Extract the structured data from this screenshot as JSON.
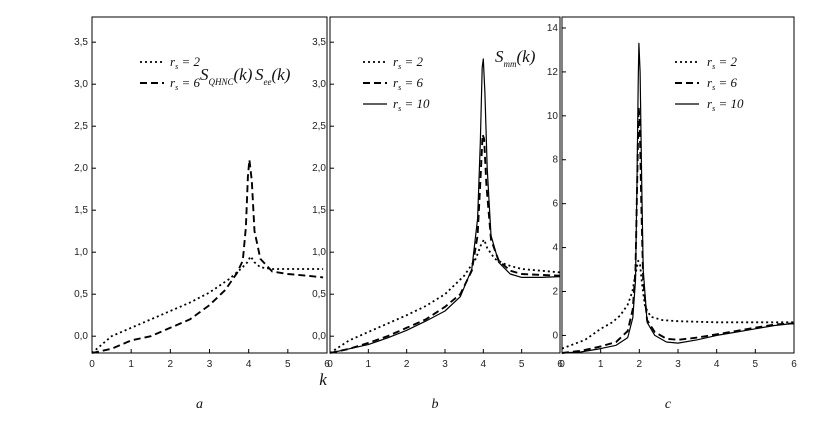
{
  "figure": {
    "shared_xlabel": "k",
    "legend_var": "r",
    "legend_sub": "s",
    "legend_eq": "= "
  },
  "chart_data": [
    {
      "type": "line",
      "panel_label": "a",
      "ylabel": "S",
      "ylabel_sub": "QHNC",
      "ylabel_arg": "(k)",
      "xlim": [
        0,
        6
      ],
      "ylim": [
        -0.2,
        3.8
      ],
      "x_ticks": [
        "0",
        "1",
        "2",
        "3",
        "4",
        "5",
        "6"
      ],
      "y_ticks": [
        "0,0",
        "0,5",
        "1,0",
        "1,5",
        "2,0",
        "2,5",
        "3,0",
        "3,5"
      ],
      "y_tick_values": [
        0,
        0.5,
        1.0,
        1.5,
        2.0,
        2.5,
        3.0,
        3.5
      ],
      "series": [
        {
          "name": "2",
          "style": "dotted",
          "points": [
            [
              0,
              -0.2
            ],
            [
              0.5,
              0.0
            ],
            [
              1,
              0.1
            ],
            [
              1.5,
              0.2
            ],
            [
              2,
              0.3
            ],
            [
              2.5,
              0.4
            ],
            [
              3,
              0.52
            ],
            [
              3.5,
              0.68
            ],
            [
              3.8,
              0.8
            ],
            [
              3.95,
              0.87
            ],
            [
              4.05,
              0.95
            ],
            [
              4.15,
              0.88
            ],
            [
              4.3,
              0.82
            ],
            [
              4.6,
              0.8
            ],
            [
              5,
              0.8
            ],
            [
              5.5,
              0.8
            ],
            [
              5.9,
              0.8
            ]
          ]
        },
        {
          "name": "6",
          "style": "dashed",
          "points": [
            [
              0,
              -0.2
            ],
            [
              0.5,
              -0.15
            ],
            [
              1,
              -0.05
            ],
            [
              1.5,
              0.0
            ],
            [
              2,
              0.1
            ],
            [
              2.5,
              0.2
            ],
            [
              3,
              0.37
            ],
            [
              3.4,
              0.55
            ],
            [
              3.7,
              0.75
            ],
            [
              3.85,
              0.9
            ],
            [
              3.93,
              1.3
            ],
            [
              3.98,
              1.9
            ],
            [
              4.02,
              2.1
            ],
            [
              4.08,
              1.85
            ],
            [
              4.15,
              1.25
            ],
            [
              4.3,
              0.92
            ],
            [
              4.6,
              0.77
            ],
            [
              5,
              0.74
            ],
            [
              5.5,
              0.72
            ],
            [
              5.9,
              0.7
            ]
          ]
        }
      ]
    },
    {
      "type": "line",
      "panel_label": "b",
      "ylabel": "S",
      "ylabel_sub": "ee",
      "ylabel_arg": "(k)",
      "xlim": [
        0,
        6
      ],
      "ylim": [
        -0.2,
        3.8
      ],
      "x_ticks": [
        "0",
        "1",
        "2",
        "3",
        "4",
        "5",
        "6"
      ],
      "y_ticks": [
        "0,0",
        "0,5",
        "1,0",
        "1,5",
        "2,0",
        "2,5",
        "3,0",
        "3,5"
      ],
      "y_tick_values": [
        0,
        0.5,
        1.0,
        1.5,
        2.0,
        2.5,
        3.0,
        3.5
      ],
      "series": [
        {
          "name": "2",
          "style": "dotted",
          "points": [
            [
              0,
              -0.2
            ],
            [
              0.5,
              -0.05
            ],
            [
              1,
              0.05
            ],
            [
              1.5,
              0.15
            ],
            [
              2,
              0.25
            ],
            [
              2.5,
              0.36
            ],
            [
              3,
              0.5
            ],
            [
              3.5,
              0.72
            ],
            [
              3.8,
              0.92
            ],
            [
              3.95,
              1.1
            ],
            [
              4.02,
              1.15
            ],
            [
              4.1,
              1.05
            ],
            [
              4.3,
              0.92
            ],
            [
              4.6,
              0.85
            ],
            [
              5,
              0.8
            ],
            [
              5.5,
              0.78
            ],
            [
              6,
              0.76
            ]
          ]
        },
        {
          "name": "6",
          "style": "dashed",
          "points": [
            [
              0,
              -0.2
            ],
            [
              0.5,
              -0.15
            ],
            [
              1,
              -0.08
            ],
            [
              1.5,
              0.0
            ],
            [
              2,
              0.1
            ],
            [
              2.5,
              0.2
            ],
            [
              3,
              0.35
            ],
            [
              3.4,
              0.5
            ],
            [
              3.7,
              0.78
            ],
            [
              3.85,
              1.2
            ],
            [
              3.93,
              1.9
            ],
            [
              3.98,
              2.4
            ],
            [
              4.02,
              2.35
            ],
            [
              4.08,
              1.8
            ],
            [
              4.2,
              1.15
            ],
            [
              4.4,
              0.9
            ],
            [
              4.7,
              0.78
            ],
            [
              5,
              0.74
            ],
            [
              5.5,
              0.73
            ],
            [
              6,
              0.72
            ]
          ]
        },
        {
          "name": "10",
          "style": "solid",
          "points": [
            [
              0,
              -0.2
            ],
            [
              0.5,
              -0.15
            ],
            [
              1,
              -0.1
            ],
            [
              1.5,
              -0.02
            ],
            [
              2,
              0.07
            ],
            [
              2.5,
              0.18
            ],
            [
              3,
              0.3
            ],
            [
              3.4,
              0.47
            ],
            [
              3.7,
              0.8
            ],
            [
              3.85,
              1.4
            ],
            [
              3.92,
              2.3
            ],
            [
              3.97,
              3.2
            ],
            [
              4.0,
              3.3
            ],
            [
              4.04,
              2.9
            ],
            [
              4.1,
              2.0
            ],
            [
              4.2,
              1.2
            ],
            [
              4.4,
              0.88
            ],
            [
              4.7,
              0.74
            ],
            [
              5,
              0.7
            ],
            [
              5.5,
              0.7
            ],
            [
              6,
              0.71
            ]
          ]
        }
      ]
    },
    {
      "type": "line",
      "panel_label": "c",
      "ylabel": "S",
      "ylabel_sub": "mm",
      "ylabel_arg": "(k)",
      "xlim": [
        0,
        6
      ],
      "ylim": [
        -0.8,
        14.5
      ],
      "x_ticks": [
        "0",
        "1",
        "2",
        "3",
        "4",
        "5",
        "6"
      ],
      "y_ticks": [
        "0",
        "2",
        "4",
        "6",
        "8",
        "10",
        "12",
        "14"
      ],
      "y_tick_values": [
        0,
        2,
        4,
        6,
        8,
        10,
        12,
        14
      ],
      "series": [
        {
          "name": "2",
          "style": "dotted",
          "points": [
            [
              0,
              -0.6
            ],
            [
              0.3,
              -0.4
            ],
            [
              0.6,
              -0.2
            ],
            [
              1,
              0.3
            ],
            [
              1.3,
              0.6
            ],
            [
              1.5,
              0.9
            ],
            [
              1.7,
              1.4
            ],
            [
              1.82,
              2.0
            ],
            [
              1.9,
              2.8
            ],
            [
              1.97,
              3.4
            ],
            [
              2.02,
              3.2
            ],
            [
              2.08,
              2.2
            ],
            [
              2.15,
              1.3
            ],
            [
              2.3,
              0.85
            ],
            [
              2.6,
              0.7
            ],
            [
              3,
              0.65
            ],
            [
              4,
              0.6
            ],
            [
              5,
              0.6
            ],
            [
              6,
              0.6
            ]
          ]
        },
        {
          "name": "6",
          "style": "dashed",
          "points": [
            [
              0,
              -0.8
            ],
            [
              0.5,
              -0.7
            ],
            [
              1,
              -0.5
            ],
            [
              1.4,
              -0.3
            ],
            [
              1.7,
              0.2
            ],
            [
              1.83,
              1.2
            ],
            [
              1.9,
              3.0
            ],
            [
              1.95,
              7.5
            ],
            [
              1.98,
              10.4
            ],
            [
              2.01,
              9.8
            ],
            [
              2.05,
              6.0
            ],
            [
              2.1,
              2.5
            ],
            [
              2.2,
              0.7
            ],
            [
              2.4,
              0.15
            ],
            [
              2.7,
              -0.15
            ],
            [
              3,
              -0.2
            ],
            [
              3.5,
              -0.1
            ],
            [
              4,
              0.05
            ],
            [
              4.5,
              0.2
            ],
            [
              5,
              0.35
            ],
            [
              5.5,
              0.5
            ],
            [
              6,
              0.55
            ]
          ]
        },
        {
          "name": "10",
          "style": "solid",
          "points": [
            [
              0,
              -0.8
            ],
            [
              0.5,
              -0.75
            ],
            [
              1,
              -0.6
            ],
            [
              1.4,
              -0.45
            ],
            [
              1.7,
              -0.1
            ],
            [
              1.83,
              0.8
            ],
            [
              1.9,
              2.5
            ],
            [
              1.94,
              7.0
            ],
            [
              1.97,
              11.5
            ],
            [
              1.99,
              13.3
            ],
            [
              2.02,
              12.0
            ],
            [
              2.06,
              7.0
            ],
            [
              2.1,
              3.0
            ],
            [
              2.2,
              0.6
            ],
            [
              2.4,
              0.0
            ],
            [
              2.7,
              -0.3
            ],
            [
              3,
              -0.35
            ],
            [
              3.5,
              -0.2
            ],
            [
              4,
              0.0
            ],
            [
              4.5,
              0.15
            ],
            [
              5,
              0.3
            ],
            [
              5.5,
              0.45
            ],
            [
              6,
              0.55
            ]
          ]
        }
      ]
    }
  ]
}
